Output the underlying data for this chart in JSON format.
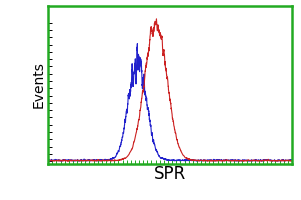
{
  "title": "",
  "xlabel": "SPR",
  "ylabel": "Events",
  "background_color": "#ffffff",
  "border_color": "#22aa22",
  "blue_curve": {
    "mean": 3.2,
    "std": 0.22,
    "amplitude": 0.72,
    "color": "#2222cc"
  },
  "red_curve": {
    "mean": 3.65,
    "std": 0.27,
    "amplitude": 1.0,
    "color": "#cc2222"
  },
  "noise_seed": 7,
  "xlim": [
    1.0,
    7.0
  ],
  "ylim": [
    -0.02,
    1.12
  ],
  "xlabel_fontsize": 12,
  "ylabel_fontsize": 10,
  "figsize": [
    3.01,
    2.0
  ],
  "dpi": 100
}
